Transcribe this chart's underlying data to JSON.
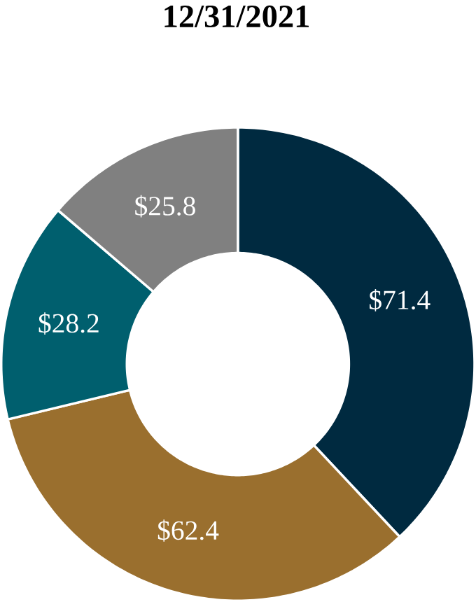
{
  "chart_data": {
    "type": "donut",
    "title": "12/31/2021",
    "categories": [
      null,
      null,
      null,
      null
    ],
    "values": [
      71.4,
      62.4,
      28.2,
      25.8
    ],
    "colors": [
      "#002a40",
      "#9a6f2e",
      "#005f6e",
      "#808080"
    ],
    "value_labels": [
      "$71.4",
      "$62.4",
      "$28.2",
      "$25.8"
    ]
  }
}
